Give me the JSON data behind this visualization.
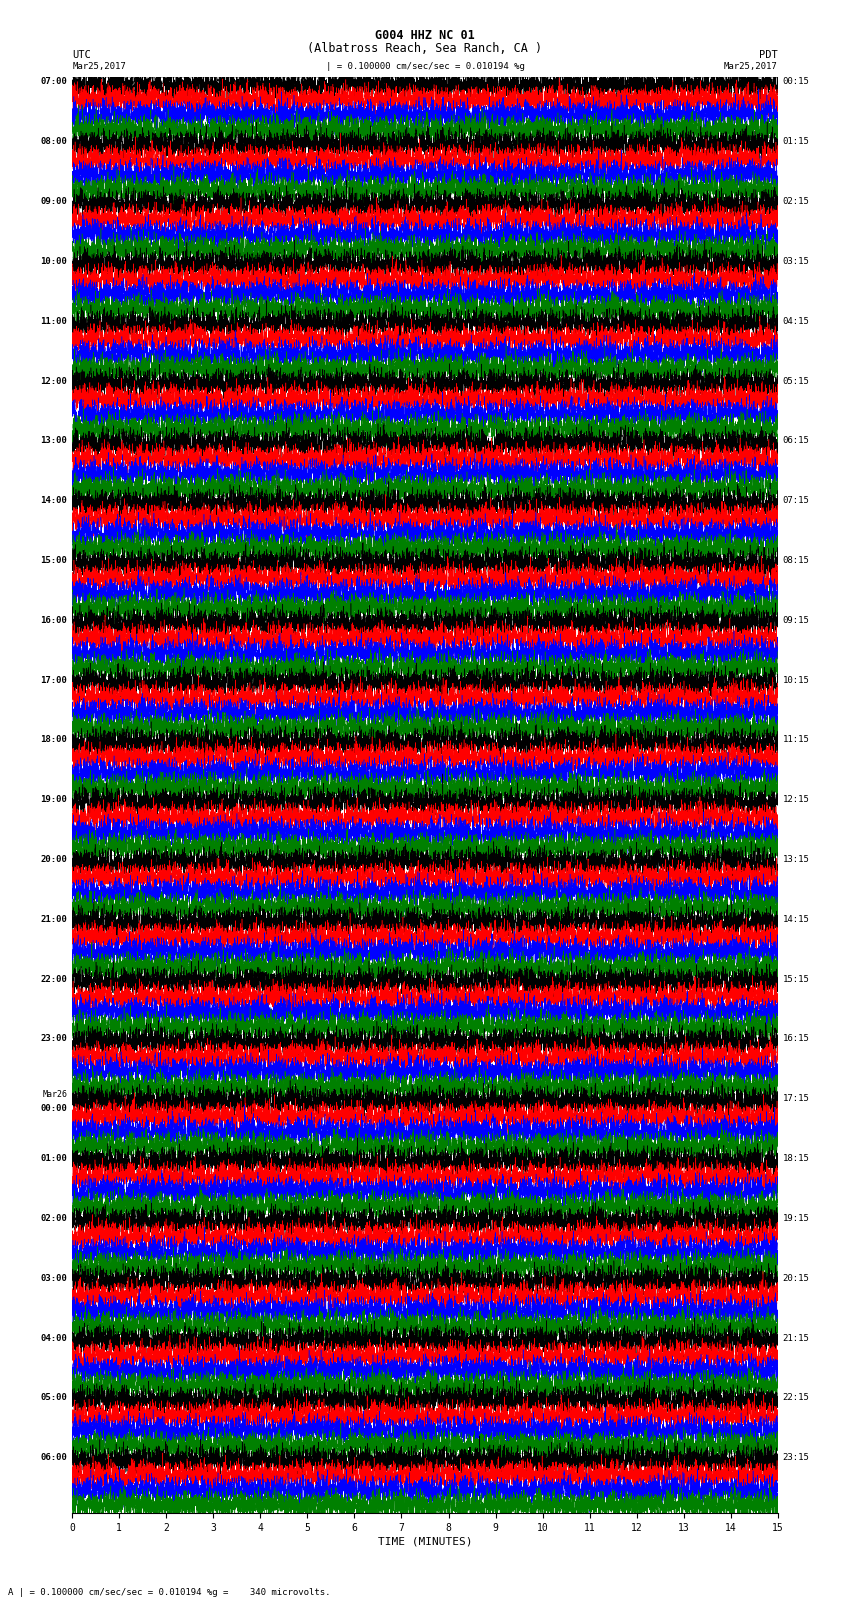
{
  "title_line1": "G004 HHZ NC 01",
  "title_line2": "(Albatross Reach, Sea Ranch, CA )",
  "scale_text": "| = 0.100000 cm/sec/sec = 0.010194 %g",
  "footer_text": "A | = 0.100000 cm/sec/sec = 0.010194 %g =    340 microvolts.",
  "xlabel": "TIME (MINUTES)",
  "left_label_top": "UTC",
  "left_label_date": "Mar25,2017",
  "right_label_top": "PDT",
  "right_label_date": "Mar25,2017",
  "utc_times": [
    "07:00",
    "08:00",
    "09:00",
    "10:00",
    "11:00",
    "12:00",
    "13:00",
    "14:00",
    "15:00",
    "16:00",
    "17:00",
    "18:00",
    "19:00",
    "20:00",
    "21:00",
    "22:00",
    "23:00",
    "Mar26",
    "00:00",
    "01:00",
    "02:00",
    "03:00",
    "04:00",
    "05:00",
    "06:00"
  ],
  "pdt_times": [
    "00:15",
    "01:15",
    "02:15",
    "03:15",
    "04:15",
    "05:15",
    "06:15",
    "07:15",
    "08:15",
    "09:15",
    "10:15",
    "11:15",
    "12:15",
    "13:15",
    "14:15",
    "15:15",
    "16:15",
    "17:15",
    "18:15",
    "19:15",
    "20:15",
    "21:15",
    "22:15",
    "23:15"
  ],
  "n_rows": 24,
  "n_traces": 4,
  "trace_colors": [
    "black",
    "red",
    "blue",
    "green"
  ],
  "minutes": 15,
  "sample_rate": 40,
  "background_color": "white",
  "figure_width": 8.5,
  "figure_height": 16.13,
  "dpi": 100,
  "mar26_row": 17
}
